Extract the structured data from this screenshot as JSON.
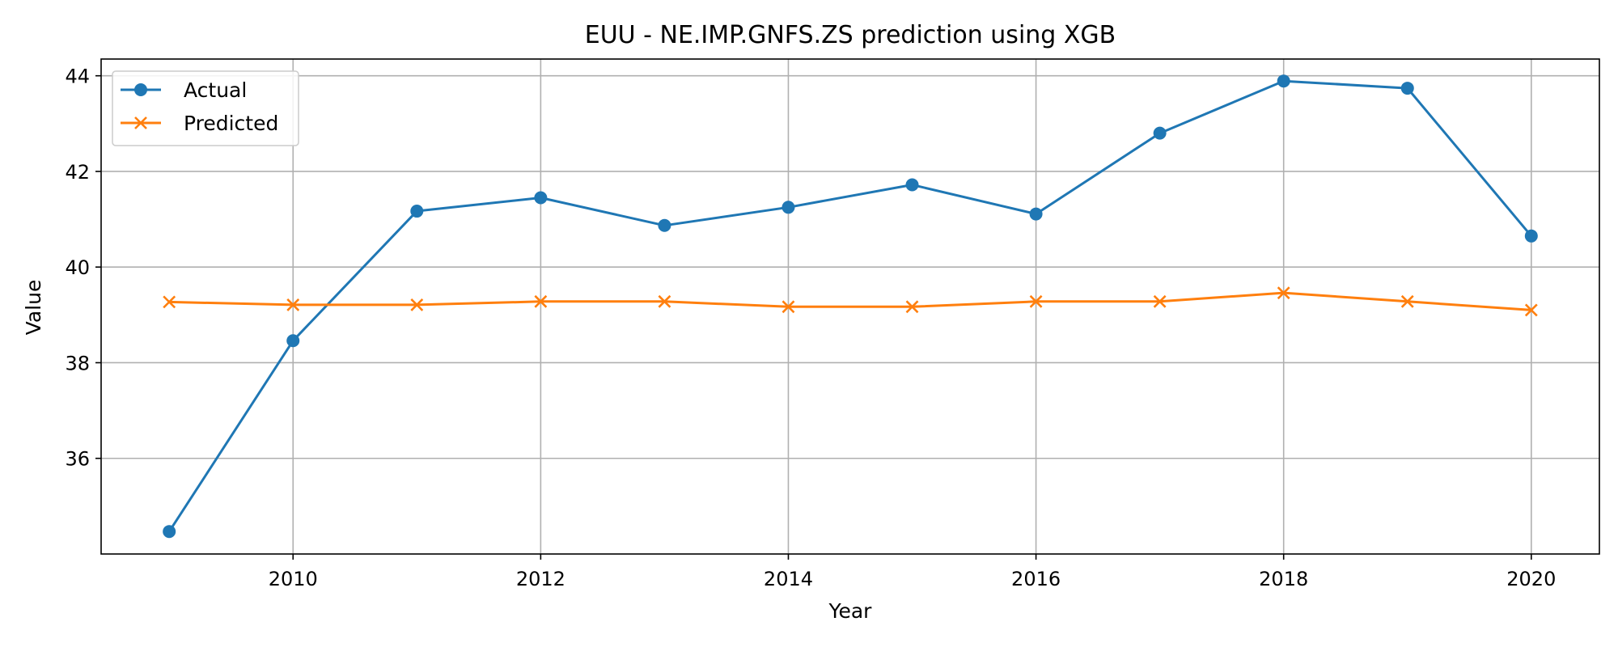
{
  "chart_data": {
    "type": "line",
    "title": "EUU - NE.IMP.GNFS.ZS prediction using XGB",
    "xlabel": "Year",
    "ylabel": "Value",
    "x": [
      2009,
      2010,
      2011,
      2012,
      2013,
      2014,
      2015,
      2016,
      2017,
      2018,
      2019,
      2020
    ],
    "xlim": [
      2008.45,
      2020.55
    ],
    "ylim": [
      34.0,
      44.35
    ],
    "xticks": [
      "2010",
      "2012",
      "2014",
      "2016",
      "2018",
      "2020"
    ],
    "yticks": [
      "36",
      "38",
      "40",
      "42",
      "44"
    ],
    "grid": true,
    "legend_position": "upper-left",
    "series": [
      {
        "name": "Actual",
        "color": "#1f77b4",
        "marker": "circle",
        "values": [
          34.47,
          38.46,
          41.17,
          41.45,
          40.87,
          41.25,
          41.72,
          41.11,
          42.8,
          43.89,
          43.74,
          40.65
        ]
      },
      {
        "name": "Predicted",
        "color": "#ff7f0e",
        "marker": "x",
        "values": [
          39.27,
          39.21,
          39.21,
          39.28,
          39.28,
          39.17,
          39.17,
          39.28,
          39.28,
          39.46,
          39.28,
          39.1
        ]
      }
    ]
  }
}
